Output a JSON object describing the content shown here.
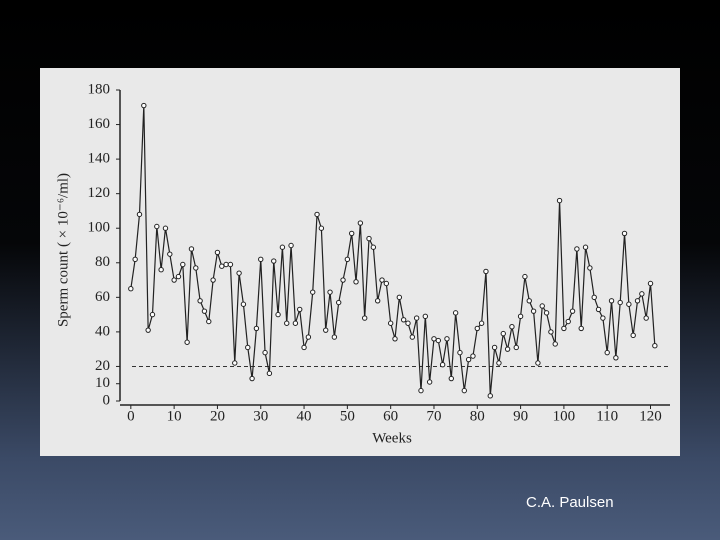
{
  "chart_data": {
    "type": "line",
    "ylabel": "Sperm count ( × 10⁻⁶/ml)",
    "xlabel": "Weeks",
    "x": [
      0,
      1,
      2,
      3,
      4,
      5,
      6,
      7,
      8,
      9,
      10,
      11,
      12,
      13,
      14,
      15,
      16,
      17,
      18,
      19,
      20,
      21,
      22,
      23,
      24,
      25,
      26,
      27,
      28,
      29,
      30,
      31,
      32,
      33,
      34,
      35,
      36,
      37,
      38,
      39,
      40,
      41,
      42,
      43,
      44,
      45,
      46,
      47,
      48,
      49,
      50,
      51,
      52,
      53,
      54,
      55,
      56,
      57,
      58,
      59,
      60,
      61,
      62,
      63,
      64,
      65,
      66,
      67,
      68,
      69,
      70,
      71,
      72,
      73,
      74,
      75,
      76,
      77,
      78,
      79,
      80,
      81,
      82,
      83,
      84,
      85,
      86,
      87,
      88,
      89,
      90,
      91,
      92,
      93,
      94,
      95,
      96,
      97,
      98,
      99,
      100,
      101,
      102,
      103,
      104,
      105,
      106,
      107,
      108,
      109,
      110,
      111,
      112,
      113,
      114,
      115,
      116,
      117,
      118,
      119,
      120,
      121
    ],
    "series": [
      {
        "color": "#222222",
        "values": [
          65,
          82,
          108,
          171,
          41,
          50,
          101,
          76,
          100,
          85,
          70,
          72,
          79,
          34,
          88,
          77,
          58,
          52,
          46,
          70,
          86,
          78,
          79,
          79,
          22,
          74,
          56,
          31,
          13,
          42,
          82,
          28,
          16,
          81,
          50,
          89,
          45,
          90,
          45,
          53,
          31,
          37,
          63,
          108,
          100,
          41,
          63,
          37,
          57,
          70,
          82,
          97,
          69,
          103,
          48,
          94,
          89,
          58,
          70,
          68,
          45,
          36,
          60,
          47,
          45,
          37,
          48,
          6,
          49,
          11,
          36,
          35,
          21,
          36,
          13,
          51,
          28,
          6,
          24,
          26,
          42,
          45,
          75,
          3,
          31,
          22,
          39,
          30,
          43,
          31,
          49,
          72,
          58,
          52,
          22,
          55,
          51,
          40,
          33,
          116,
          42,
          46,
          52,
          88,
          42,
          89,
          77,
          60,
          53,
          48,
          28,
          58,
          25,
          57,
          97,
          56,
          38,
          58,
          62,
          48,
          68,
          32
        ]
      }
    ],
    "reference_line": 20,
    "xlim": [
      -2.5,
      124.5
    ],
    "xticks": [
      0,
      10,
      20,
      30,
      40,
      50,
      60,
      70,
      80,
      90,
      100,
      110,
      120
    ],
    "ylim": [
      0,
      180
    ],
    "yticks": [
      0,
      10,
      20,
      40,
      60,
      80,
      100,
      120,
      140,
      160,
      180
    ]
  },
  "footer": {
    "credit": "C.A. Paulsen"
  }
}
